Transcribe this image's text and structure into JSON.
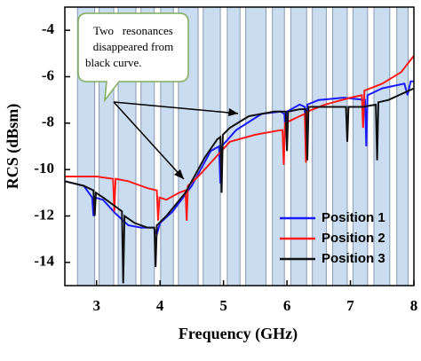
{
  "chart_data": {
    "type": "line",
    "xlabel": "Frequency (GHz)",
    "ylabel": "RCS (dBsm)",
    "xlim": [
      2.5,
      8
    ],
    "ylim": [
      -15,
      -3
    ],
    "xticks": [
      3,
      4,
      5,
      6,
      7,
      8
    ],
    "yticks": [
      -4,
      -6,
      -8,
      -10,
      -12,
      -14
    ],
    "legend": "lower right",
    "annotation": [
      "Two   resonances",
      "disappeared from",
      "black curve."
    ],
    "shaded_bands": [
      [
        2.7,
        2.97
      ],
      [
        3.04,
        3.27
      ],
      [
        3.34,
        3.62
      ],
      [
        3.7,
        3.91
      ],
      [
        4.01,
        4.21
      ],
      [
        4.29,
        4.6
      ],
      [
        4.68,
        4.95
      ],
      [
        5.06,
        5.26
      ],
      [
        5.35,
        5.67
      ],
      [
        5.77,
        5.96
      ],
      [
        6.06,
        6.31
      ],
      [
        6.4,
        6.62
      ],
      [
        6.72,
        6.95
      ],
      [
        7.04,
        7.27
      ],
      [
        7.37,
        7.62
      ],
      [
        7.73,
        7.91
      ]
    ],
    "series": [
      {
        "name": "Position 1",
        "color": "#1a1aff",
        "x": [
          2.5,
          2.8,
          2.93,
          2.95,
          2.97,
          3.1,
          3.3,
          3.5,
          3.7,
          3.9,
          3.95,
          4.0,
          4.2,
          4.5,
          4.8,
          4.93,
          4.95,
          4.97,
          5.2,
          5.6,
          5.9,
          5.96,
          5.98,
          6.0,
          6.2,
          6.28,
          6.3,
          6.32,
          6.5,
          6.9,
          7.23,
          7.25,
          7.27,
          7.5,
          7.85,
          7.9,
          7.95,
          8.0
        ],
        "values": [
          -10.5,
          -10.7,
          -11.2,
          -12.0,
          -11.2,
          -11.3,
          -11.9,
          -12.4,
          -12.5,
          -12.5,
          -12.8,
          -12.3,
          -11.8,
          -10.7,
          -9.2,
          -9.0,
          -10.6,
          -9.0,
          -8.3,
          -7.6,
          -7.5,
          -7.6,
          -8.5,
          -7.5,
          -7.2,
          -7.3,
          -9.5,
          -7.2,
          -7.0,
          -6.9,
          -7.0,
          -9.0,
          -6.8,
          -6.5,
          -6.3,
          -6.8,
          -6.2,
          -6.2
        ]
      },
      {
        "name": "Position 2",
        "color": "#ff1a1a",
        "x": [
          2.5,
          3.0,
          3.26,
          3.28,
          3.3,
          3.5,
          3.8,
          3.95,
          3.97,
          3.99,
          4.1,
          4.3,
          4.4,
          4.42,
          4.44,
          4.6,
          4.9,
          5.1,
          5.5,
          5.9,
          5.93,
          5.95,
          5.97,
          6.2,
          6.28,
          6.3,
          6.32,
          6.6,
          7.0,
          7.18,
          7.2,
          7.22,
          7.5,
          7.8,
          8.0
        ],
        "values": [
          -10.3,
          -10.3,
          -10.4,
          -11.8,
          -10.4,
          -10.5,
          -10.8,
          -10.9,
          -12.2,
          -11.2,
          -11.3,
          -11.0,
          -10.9,
          -12.2,
          -10.7,
          -10.3,
          -9.4,
          -8.8,
          -8.5,
          -8.3,
          -8.3,
          -9.8,
          -8.0,
          -7.7,
          -7.6,
          -9.7,
          -7.5,
          -7.2,
          -6.9,
          -6.8,
          -8.2,
          -6.6,
          -6.3,
          -5.8,
          -5.1
        ]
      },
      {
        "name": "Position 3",
        "color": "#111111",
        "x": [
          2.5,
          2.8,
          2.95,
          2.97,
          2.99,
          3.1,
          3.3,
          3.4,
          3.42,
          3.44,
          3.6,
          3.8,
          3.91,
          3.93,
          3.95,
          4.1,
          4.4,
          4.7,
          4.9,
          4.95,
          4.97,
          4.99,
          5.1,
          5.4,
          5.8,
          5.98,
          6.0,
          6.02,
          6.2,
          6.3,
          6.32,
          6.34,
          6.6,
          6.93,
          6.95,
          6.97,
          7.2,
          7.4,
          7.42,
          7.44,
          7.6,
          8.0
        ],
        "values": [
          -10.5,
          -10.7,
          -10.9,
          -12.0,
          -11.0,
          -11.2,
          -11.6,
          -11.8,
          -14.9,
          -12.0,
          -12.3,
          -12.5,
          -12.5,
          -14.2,
          -12.4,
          -12.0,
          -11.0,
          -9.5,
          -8.7,
          -8.6,
          -11.0,
          -8.5,
          -8.2,
          -7.7,
          -7.5,
          -7.5,
          -9.2,
          -7.5,
          -7.4,
          -7.4,
          -9.6,
          -7.3,
          -7.3,
          -7.3,
          -8.8,
          -7.3,
          -7.3,
          -7.2,
          -9.6,
          -7.1,
          -7.0,
          -6.5
        ]
      }
    ]
  }
}
